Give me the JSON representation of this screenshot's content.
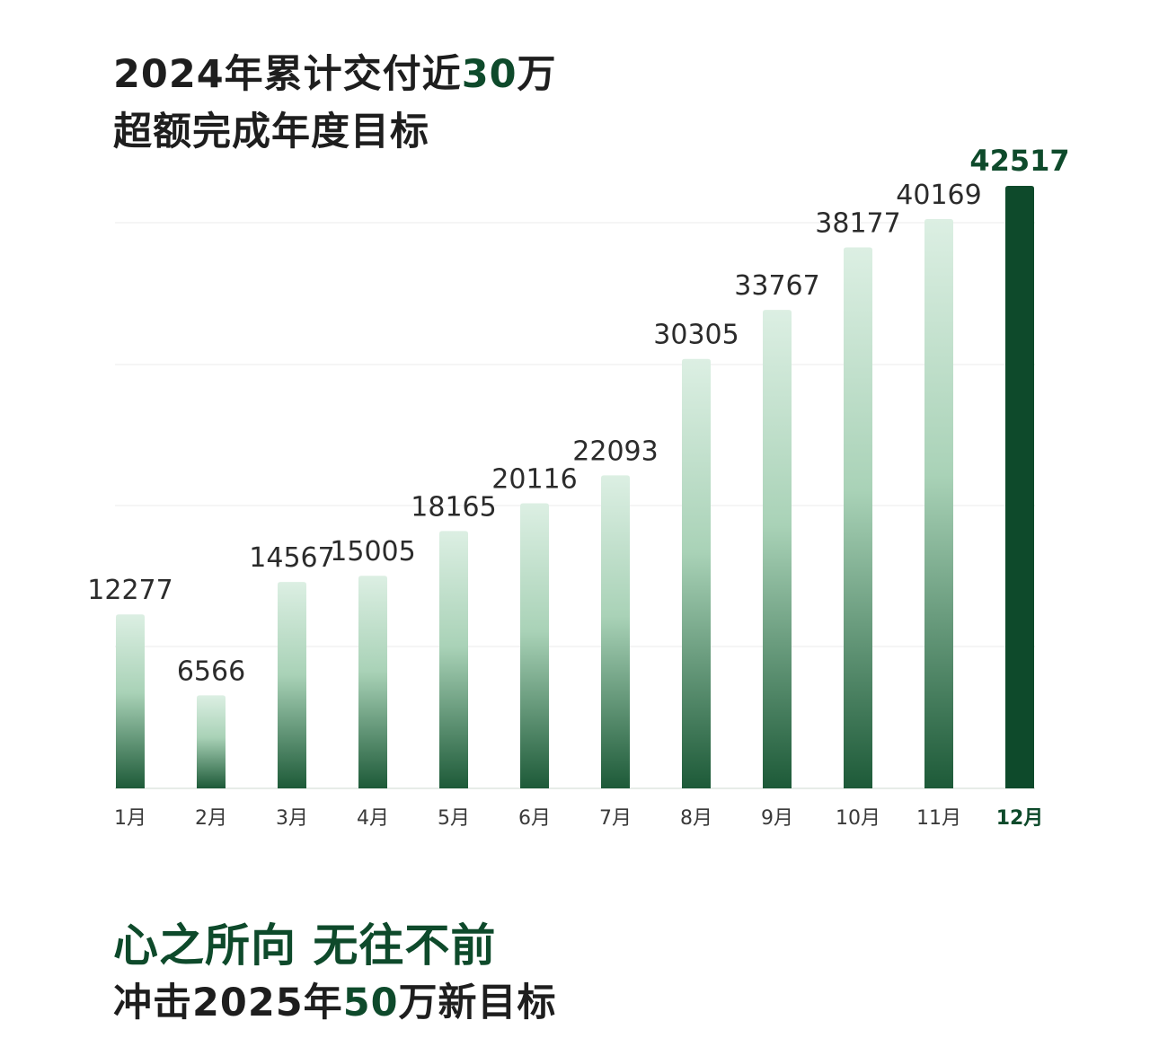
{
  "header": {
    "line1_prefix": "2024年累计交付近",
    "line1_emphasis": "30",
    "line1_suffix": "万",
    "line2": "超额完成年度目标"
  },
  "footer": {
    "slogan": "心之所向 无往不前",
    "line2_prefix": "冲击2025年",
    "line2_emphasis": "50",
    "line2_suffix": "万新目标"
  },
  "colors": {
    "accent": "#0e4a2b",
    "bar_top": "#d9ece0",
    "bar_bottom": "#1d5a38",
    "grid": "#ebebeb"
  },
  "chart_data": {
    "type": "bar",
    "categories": [
      "1月",
      "2月",
      "3月",
      "4月",
      "5月",
      "6月",
      "7月",
      "8月",
      "9月",
      "10月",
      "11月",
      "12月"
    ],
    "values": [
      12277,
      6566,
      14567,
      15005,
      18165,
      20116,
      22093,
      30305,
      33767,
      38177,
      40169,
      42517
    ],
    "highlight_index": 11,
    "ylim": [
      0,
      42517
    ],
    "grid": true
  }
}
